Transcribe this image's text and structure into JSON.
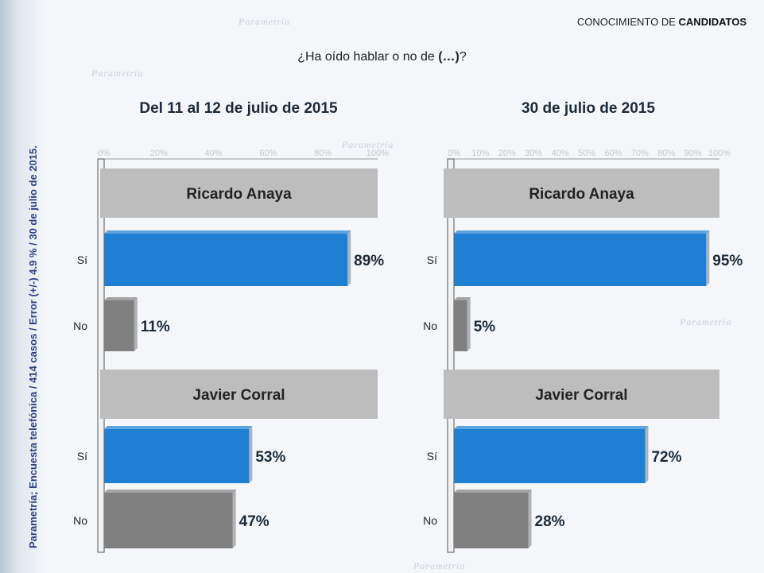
{
  "header": {
    "prefix": "CONOCIMIENTO DE ",
    "bold": "CANDIDATOS"
  },
  "question": {
    "prefix": "¿Ha oído hablar o no de ",
    "bold": "(…)",
    "suffix": "?"
  },
  "sidebar_source": "Parametría; Encuesta telefónica / 414 casos / Error (+/-) 4.9 % / 30 de julio de 2015.",
  "colors": {
    "si": "#1e7fd3",
    "no": "#808080",
    "header_bar": "#bdbdbd"
  },
  "chart_data": [
    {
      "type": "bar",
      "title": "Del 11 al 12 de  julio de 2015",
      "ticks": [
        "0%",
        "20%",
        "40%",
        "60%",
        "80%",
        "100%"
      ],
      "xlim": [
        0,
        100
      ],
      "groups": [
        {
          "name": "Ricardo Anaya",
          "items": [
            {
              "label": "Sí",
              "value": 89,
              "text": "89%"
            },
            {
              "label": "No",
              "value": 11,
              "text": "11%"
            }
          ]
        },
        {
          "name": "Javier Corral",
          "items": [
            {
              "label": "Sí",
              "value": 53,
              "text": "53%"
            },
            {
              "label": "No",
              "value": 47,
              "text": "47%"
            }
          ]
        }
      ]
    },
    {
      "type": "bar",
      "title": "30 de julio de 2015",
      "ticks": [
        "0%",
        "10%",
        "20%",
        "30%",
        "40%",
        "50%",
        "60%",
        "70%",
        "80%",
        "90%",
        "100%"
      ],
      "xlim": [
        0,
        100
      ],
      "groups": [
        {
          "name": "Ricardo Anaya",
          "items": [
            {
              "label": "Sí",
              "value": 95,
              "text": "95%"
            },
            {
              "label": "No",
              "value": 5,
              "text": "5%"
            }
          ]
        },
        {
          "name": "Javier Corral",
          "items": [
            {
              "label": "Sí",
              "value": 72,
              "text": "72%"
            },
            {
              "label": "No",
              "value": 28,
              "text": "28%"
            }
          ]
        }
      ]
    }
  ]
}
